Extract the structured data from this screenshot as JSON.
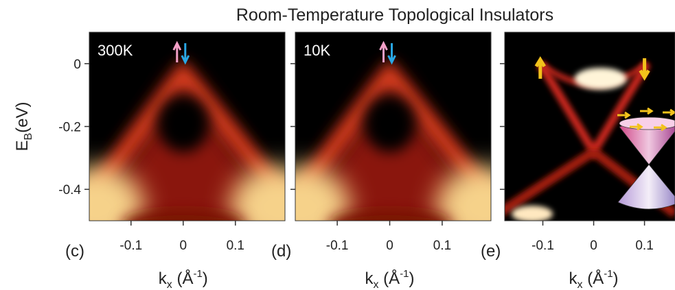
{
  "chart_data": [
    {
      "type": "image",
      "title": "Room-Temperature Topological Insulators",
      "panel": "(c)",
      "annotation": "300K",
      "xlabel": {
        "main": "k",
        "sub": "x",
        "unit": " (Å",
        "exp": "-1",
        "close": ")"
      },
      "ylabel": {
        "main": "E",
        "sub": "B",
        "unit": "(eV)"
      },
      "xlim": [
        -0.18,
        0.195
      ],
      "ylim": [
        -0.5,
        0.1
      ],
      "xticks": [
        -0.1,
        0,
        0.1
      ],
      "yticks": [
        0,
        -0.2,
        -0.4
      ]
    },
    {
      "type": "image",
      "panel": "(d)",
      "annotation": "10K",
      "xlabel": {
        "main": "k",
        "sub": "x",
        "unit": " (Å",
        "exp": "-1",
        "close": ")"
      },
      "xlim": [
        -0.18,
        0.193
      ],
      "ylim": [
        -0.5,
        0.1
      ],
      "xticks": [
        -0.1,
        0,
        0.1
      ],
      "yticks": [
        0,
        -0.2,
        -0.4
      ]
    },
    {
      "type": "image",
      "panel": "(e)",
      "xlabel": {
        "main": "k",
        "sub": "x",
        "unit": " (Å",
        "exp": "-1",
        "close": ")"
      },
      "xlim": [
        -0.175,
        0.16
      ],
      "ylim": [
        -0.5,
        0.1
      ],
      "xticks": [
        -0.1,
        0,
        0.1
      ],
      "yticks": [
        0,
        -0.2,
        -0.4
      ]
    }
  ]
}
